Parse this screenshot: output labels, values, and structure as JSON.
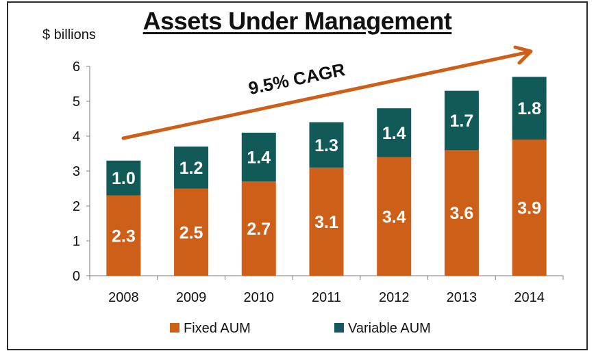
{
  "title": "Assets Under Management",
  "units_label": "$ billions",
  "colors": {
    "fixed": "#cd5f18",
    "variable": "#125a58",
    "arrow": "#cd5f18"
  },
  "chart_data": {
    "type": "bar",
    "stacked": true,
    "title": "Assets Under Management",
    "ylabel": "$ billions",
    "xlabel": "",
    "ylim": [
      0,
      6
    ],
    "yticks": [
      0,
      1,
      2,
      3,
      4,
      5,
      6
    ],
    "grid": false,
    "legend_position": "bottom",
    "categories": [
      "2008",
      "2009",
      "2010",
      "2011",
      "2012",
      "2013",
      "2014"
    ],
    "series": [
      {
        "name": "Fixed AUM",
        "values": [
          2.3,
          2.5,
          2.7,
          3.1,
          3.4,
          3.6,
          3.9
        ],
        "labels": [
          "2.3",
          "2.5",
          "2.7",
          "3.1",
          "3.4",
          "3.6",
          "3.9"
        ]
      },
      {
        "name": "Variable AUM",
        "values": [
          1.0,
          1.2,
          1.4,
          1.3,
          1.4,
          1.7,
          1.8
        ],
        "labels": [
          "1.0",
          "1.2",
          "1.4",
          "1.3",
          "1.4",
          "1.7",
          "1.8"
        ]
      }
    ],
    "annotation": "9.5% CAGR"
  }
}
